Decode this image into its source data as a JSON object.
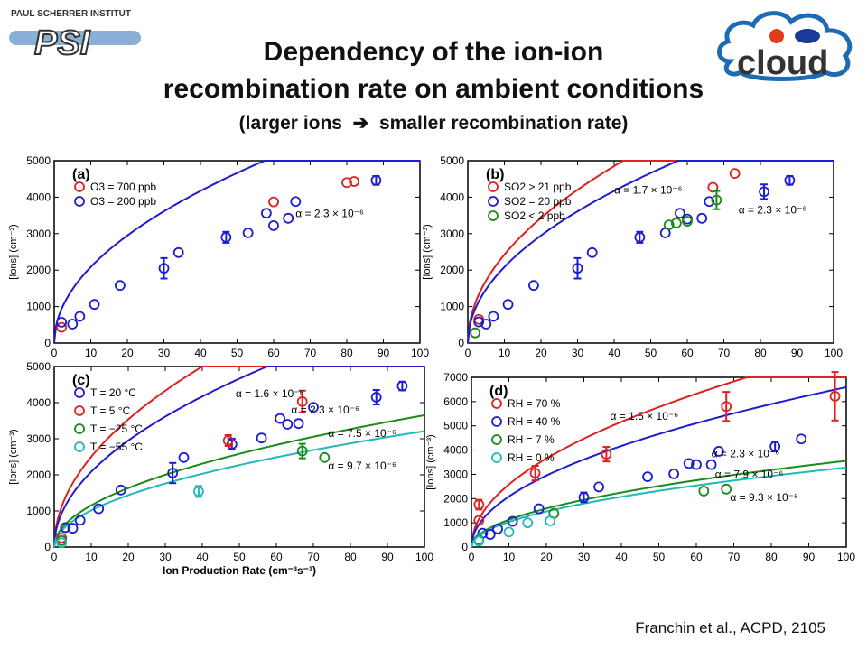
{
  "title_line1": "Dependency of the ion-ion",
  "title_line2": "recombination rate on ambient conditions",
  "subtitle_left": "(larger ions",
  "subtitle_right": "smaller recombination rate)",
  "credit": "Franchin et al., ACPD, 2105",
  "logos": {
    "psi_text": "PAUL SCHERRER INSTITUT",
    "psi_mark": "PSI",
    "cloud_mark": "cloud",
    "psi_color": "#8ab0d8",
    "cloud_color": "#1d6bb5"
  },
  "shared": {
    "xlabel": "Ion Production Rate (cm⁻³s⁻¹)",
    "ylabel": "[Ions] (cm⁻³)",
    "xlim": [
      0,
      100
    ],
    "xticks": [
      0,
      10,
      20,
      30,
      40,
      50,
      60,
      70,
      80,
      90,
      100
    ]
  },
  "chart_data": [
    {
      "id": "a",
      "type": "scatter",
      "panel_label": "(a)",
      "ylim": [
        0,
        5000
      ],
      "yticks": [
        0,
        1000,
        2000,
        3000,
        4000,
        5000
      ],
      "show_xlabel": false,
      "series": [
        {
          "name": "O3 = 700 ppb",
          "color": "#e02020",
          "points": [
            [
              2,
              430
            ],
            [
              60,
              3870
            ],
            [
              80,
              4400
            ],
            [
              82,
              4430
            ]
          ]
        },
        {
          "name": "O3 = 200 ppb",
          "color": "#1c1cd0",
          "points": [
            [
              2,
              570
            ],
            [
              5,
              520
            ],
            [
              7,
              730
            ],
            [
              11,
              1060
            ],
            [
              18,
              1580
            ],
            [
              30,
              2050
            ],
            [
              34,
              2480
            ],
            [
              47,
              2900
            ],
            [
              53,
              3020
            ],
            [
              58,
              3560
            ],
            [
              60,
              3220
            ],
            [
              64,
              3420
            ],
            [
              66,
              3880
            ],
            [
              88,
              4460
            ]
          ],
          "errors": [
            [
              30,
              2050,
              280
            ],
            [
              47,
              2900,
              150
            ],
            [
              88,
              4460,
              120
            ]
          ]
        }
      ],
      "curves": [
        {
          "color": "#1c1cd0",
          "alpha": 2.3e-06,
          "xmax": 100
        }
      ],
      "annotations": [
        {
          "text": "α = 2.3 × 10⁻⁶",
          "x": 66,
          "y": 3450
        }
      ]
    },
    {
      "id": "b",
      "type": "scatter",
      "panel_label": "(b)",
      "ylim": [
        0,
        5000
      ],
      "yticks": [
        0,
        1000,
        2000,
        3000,
        4000,
        5000
      ],
      "show_xlabel": false,
      "series": [
        {
          "name": "SO2 > 21 ppb",
          "color": "#e02020",
          "points": [
            [
              2,
              280
            ],
            [
              3,
              650
            ],
            [
              67,
              4270
            ],
            [
              73,
              4650
            ]
          ]
        },
        {
          "name": "SO2 = 20 ppb",
          "color": "#1c1cd0",
          "points": [
            [
              3,
              580
            ],
            [
              5,
              520
            ],
            [
              7,
              730
            ],
            [
              11,
              1060
            ],
            [
              18,
              1580
            ],
            [
              30,
              2050
            ],
            [
              34,
              2480
            ],
            [
              47,
              2900
            ],
            [
              54,
              3020
            ],
            [
              58,
              3560
            ],
            [
              60,
              3400
            ],
            [
              64,
              3420
            ],
            [
              66,
              3880
            ],
            [
              81,
              4150
            ],
            [
              88,
              4460
            ]
          ],
          "errors": [
            [
              30,
              2050,
              280
            ],
            [
              47,
              2900,
              150
            ],
            [
              81,
              4150,
              200
            ],
            [
              88,
              4460,
              120
            ]
          ]
        },
        {
          "name": "SO2 <  2 ppb",
          "color": "#1a8a1a",
          "points": [
            [
              2,
              280
            ],
            [
              55,
              3240
            ],
            [
              57,
              3290
            ],
            [
              60,
              3340
            ],
            [
              68,
              3920
            ]
          ],
          "errors": [
            [
              68,
              3920,
              250
            ]
          ]
        }
      ],
      "curves": [
        {
          "color": "#e02020",
          "alpha": 1.7e-06,
          "xmax": 100
        },
        {
          "color": "#1c1cd0",
          "alpha": 2.3e-06,
          "xmax": 100
        }
      ],
      "annotations": [
        {
          "text": "α = 1.7 × 10⁻⁶",
          "x": 40,
          "y": 4100
        },
        {
          "text": "α = 2.3 × 10⁻⁶",
          "x": 74,
          "y": 3550
        }
      ]
    },
    {
      "id": "c",
      "type": "scatter",
      "panel_label": "(c)",
      "ylim": [
        0,
        5000
      ],
      "yticks": [
        0,
        1000,
        2000,
        3000,
        4000,
        5000
      ],
      "show_xlabel": true,
      "series": [
        {
          "name": "T =  20 °C",
          "color": "#1c1cd0",
          "points": [
            [
              3,
              540
            ],
            [
              5,
              520
            ],
            [
              7,
              740
            ],
            [
              12,
              1060
            ],
            [
              18,
              1580
            ],
            [
              32,
              2050
            ],
            [
              35,
              2480
            ],
            [
              48,
              2850
            ],
            [
              56,
              3020
            ],
            [
              61,
              3560
            ],
            [
              63,
              3400
            ],
            [
              66,
              3420
            ],
            [
              70,
              3870
            ],
            [
              87,
              4150
            ],
            [
              94,
              4460
            ]
          ],
          "errors": [
            [
              32,
              2050,
              280
            ],
            [
              48,
              2850,
              150
            ],
            [
              87,
              4150,
              200
            ],
            [
              94,
              4460,
              120
            ]
          ]
        },
        {
          "name": "T =    5 °C",
          "color": "#e02020",
          "points": [
            [
              2,
              250
            ],
            [
              47,
              2950
            ],
            [
              67,
              4030
            ]
          ],
          "errors": [
            [
              47,
              2950,
              150
            ],
            [
              67,
              4030,
              300
            ]
          ]
        },
        {
          "name": "T = −25 °C",
          "color": "#1a8a1a",
          "points": [
            [
              2,
              180
            ],
            [
              67,
              2660
            ],
            [
              73,
              2480
            ]
          ],
          "errors": [
            [
              67,
              2660,
              200
            ]
          ]
        },
        {
          "name": "T = −55 °C",
          "color": "#20b8b8",
          "points": [
            [
              2,
              120
            ],
            [
              39,
              1540
            ]
          ],
          "errors": [
            [
              39,
              1540,
              150
            ]
          ]
        }
      ],
      "curves": [
        {
          "color": "#e02020",
          "alpha": 1.6e-06,
          "xmax": 100
        },
        {
          "color": "#1c1cd0",
          "alpha": 2.3e-06,
          "xmax": 100
        },
        {
          "color": "#1a8a1a",
          "alpha": 7.5e-06,
          "xmax": 100
        },
        {
          "color": "#20b8b8",
          "alpha": 9.7e-06,
          "xmax": 100
        }
      ],
      "annotations": [
        {
          "text": "α = 1.6 × 10⁻⁶",
          "x": 49,
          "y": 4150
        },
        {
          "text": "α = 2.3 × 10⁻⁶",
          "x": 64,
          "y": 3700
        },
        {
          "text": "α = 7.5 × 10⁻⁶",
          "x": 74,
          "y": 3050
        },
        {
          "text": "α = 9.7 × 10⁻⁶",
          "x": 74,
          "y": 2150
        }
      ]
    },
    {
      "id": "d",
      "type": "scatter",
      "panel_label": "(d)",
      "ylim": [
        0,
        7000
      ],
      "yticks": [
        0,
        1000,
        2000,
        3000,
        4000,
        5000,
        6000,
        7000
      ],
      "show_xlabel": false,
      "series": [
        {
          "name": "RH = 70 %",
          "color": "#e02020",
          "points": [
            [
              2,
              1100
            ],
            [
              2,
              1750
            ],
            [
              17,
              3050
            ],
            [
              36,
              3830
            ],
            [
              68,
              5800
            ],
            [
              97,
              6220
            ]
          ],
          "errors": [
            [
              2,
              1750,
              200
            ],
            [
              17,
              3050,
              300
            ],
            [
              36,
              3830,
              300
            ],
            [
              68,
              5800,
              600
            ],
            [
              97,
              6220,
              1000
            ]
          ]
        },
        {
          "name": "RH = 40 %",
          "color": "#1c1cd0",
          "points": [
            [
              3,
              570
            ],
            [
              5,
              520
            ],
            [
              7,
              750
            ],
            [
              11,
              1060
            ],
            [
              18,
              1580
            ],
            [
              30,
              2050
            ],
            [
              34,
              2480
            ],
            [
              47,
              2900
            ],
            [
              54,
              3020
            ],
            [
              58,
              3450
            ],
            [
              60,
              3400
            ],
            [
              64,
              3400
            ],
            [
              66,
              3950
            ],
            [
              81,
              4150
            ],
            [
              88,
              4460
            ]
          ],
          "errors": [
            [
              30,
              2050,
              200
            ],
            [
              81,
              4150,
              200
            ]
          ]
        },
        {
          "name": "RH =   7 %",
          "color": "#1a8a1a",
          "points": [
            [
              2,
              300
            ],
            [
              22,
              1390
            ],
            [
              62,
              2310
            ],
            [
              68,
              2390
            ]
          ]
        },
        {
          "name": "RH =   0 %",
          "color": "#20b8b8",
          "points": [
            [
              2,
              250
            ],
            [
              10,
              620
            ],
            [
              15,
              1000
            ],
            [
              21,
              1080
            ]
          ]
        }
      ],
      "curves": [
        {
          "color": "#e02020",
          "alpha": 1.5e-06,
          "xmax": 100
        },
        {
          "color": "#1c1cd0",
          "alpha": 2.3e-06,
          "xmax": 100
        },
        {
          "color": "#1a8a1a",
          "alpha": 7.9e-06,
          "xmax": 100
        },
        {
          "color": "#20b8b8",
          "alpha": 9.3e-06,
          "xmax": 100
        }
      ],
      "annotations": [
        {
          "text": "α = 1.5 × 10⁻⁶",
          "x": 37,
          "y": 5250
        },
        {
          "text": "α = 2.3 × 10⁻⁶",
          "x": 64,
          "y": 3700
        },
        {
          "text": "α = 7.9 × 10⁻⁶",
          "x": 65,
          "y": 2850
        },
        {
          "text": "α = 9.3 × 10⁻⁶",
          "x": 69,
          "y": 1900
        }
      ]
    }
  ]
}
